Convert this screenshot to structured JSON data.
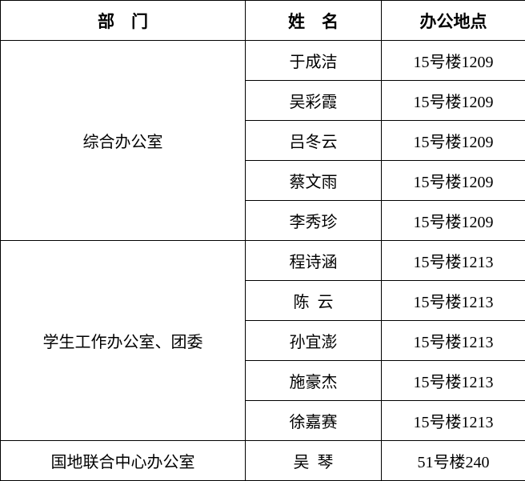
{
  "headers": {
    "department": "部    门",
    "name": "姓    名",
    "location": "办公地点"
  },
  "groups": [
    {
      "department": "综合办公室",
      "members": [
        {
          "name": "于成洁",
          "location": "15号楼1209"
        },
        {
          "name": "吴彩霞",
          "location": "15号楼1209"
        },
        {
          "name": "吕冬云",
          "location": "15号楼1209"
        },
        {
          "name": "蔡文雨",
          "location": "15号楼1209"
        },
        {
          "name": "李秀珍",
          "location": "15号楼1209"
        }
      ]
    },
    {
      "department": "学生工作办公室、团委",
      "members": [
        {
          "name": "程诗涵",
          "location": "15号楼1213"
        },
        {
          "name": "陈  云",
          "location": "15号楼1213"
        },
        {
          "name": "孙宜澎",
          "location": "15号楼1213"
        },
        {
          "name": "施豪杰",
          "location": "15号楼1213"
        },
        {
          "name": "徐嘉赛",
          "location": "15号楼1213"
        }
      ]
    },
    {
      "department": "国地联合中心办公室",
      "members": [
        {
          "name": "吴  琴",
          "location": "51号楼240"
        }
      ]
    }
  ]
}
